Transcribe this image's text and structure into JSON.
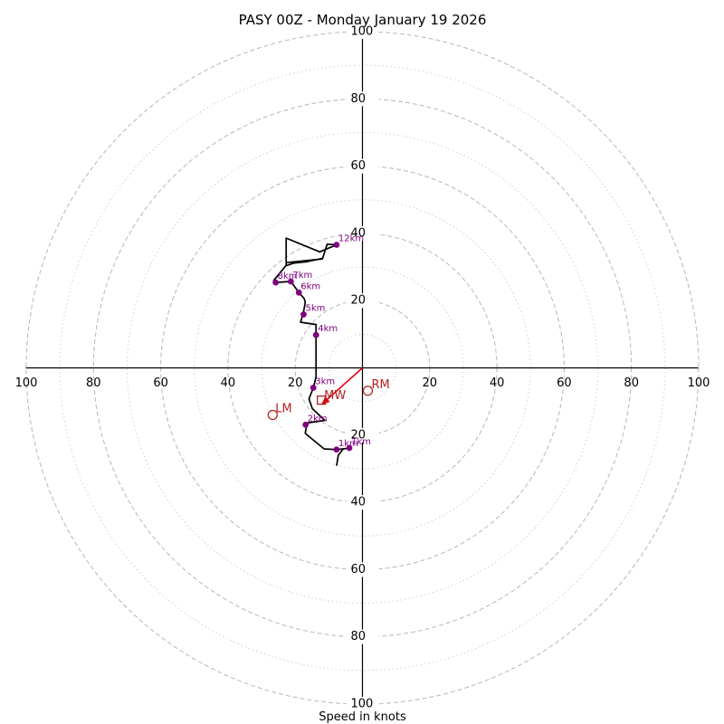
{
  "chart_data": {
    "type": "hodograph",
    "title": "PASY 00Z - Monday January 19 2026",
    "xlabel": "Speed in knots",
    "range": 100,
    "ring_dashed": [
      20,
      40,
      60,
      80,
      100
    ],
    "ring_dotted": [
      10,
      30,
      50,
      70,
      90
    ],
    "tick_labels": {
      "x_left": [
        "100",
        "80",
        "60",
        "40",
        "20"
      ],
      "x_right": [
        "20",
        "40",
        "60",
        "80",
        "100"
      ],
      "y_top": [
        "100",
        "80",
        "60",
        "40",
        "20"
      ],
      "y_bottom": [
        "20",
        "40",
        "60",
        "80",
        "100"
      ]
    },
    "tick_values": {
      "x_left": [
        -100,
        -80,
        -60,
        -40,
        -20
      ],
      "x_right": [
        20,
        40,
        60,
        80,
        100
      ],
      "y_top": [
        100,
        80,
        60,
        40,
        20
      ],
      "y_bottom": [
        -20,
        -40,
        -60,
        -80,
        -100
      ]
    },
    "trace": [
      [
        -7.7,
        -29.1
      ],
      [
        -7.2,
        -26.0
      ],
      [
        -5.7,
        -24.1
      ],
      [
        -4.2,
        -23.9
      ],
      [
        -7.7,
        -24.3
      ],
      [
        -11.4,
        -24.1
      ],
      [
        -17.0,
        -19.5
      ],
      [
        -16.5,
        -16.4
      ],
      [
        -11.2,
        -15.6
      ],
      [
        -14.9,
        -12.1
      ],
      [
        -15.9,
        -9.2
      ],
      [
        -14.6,
        -5.9
      ],
      [
        -13.8,
        -2.7
      ],
      [
        -13.8,
        9.5
      ],
      [
        -13.8,
        12.9
      ],
      [
        -18.4,
        13.6
      ],
      [
        -17.6,
        16.2
      ],
      [
        -17.0,
        19.5
      ],
      [
        -17.3,
        20.6
      ],
      [
        -18.9,
        22.4
      ],
      [
        -21.3,
        25.7
      ],
      [
        -25.8,
        25.4
      ],
      [
        -26.4,
        26.0
      ],
      [
        -22.7,
        30.5
      ],
      [
        -22.7,
        31.3
      ],
      [
        -11.9,
        32.4
      ],
      [
        -10.5,
        36.8
      ],
      [
        -7.7,
        36.6
      ],
      [
        -12.7,
        34.5
      ],
      [
        -22.7,
        38.6
      ],
      [
        -22.7,
        30.4
      ],
      [
        -20.3,
        31.2
      ],
      [
        -16.4,
        31.6
      ],
      [
        -11.9,
        32.6
      ]
    ],
    "height_markers": [
      {
        "label": "1km",
        "u": -3.9,
        "v": -23.8
      },
      {
        "label": "1km",
        "u": -7.7,
        "v": -24.3
      },
      {
        "label": "2km",
        "u": -16.9,
        "v": -16.9
      },
      {
        "label": "3km",
        "u": -14.6,
        "v": -5.9
      },
      {
        "label": "4km",
        "u": -13.8,
        "v": 9.8
      },
      {
        "label": "5km",
        "u": -17.5,
        "v": 15.9
      },
      {
        "label": "6km",
        "u": -18.9,
        "v": 22.4
      },
      {
        "label": "7km",
        "u": -21.3,
        "v": 25.7
      },
      {
        "label": "8km",
        "u": -25.8,
        "v": 25.4
      },
      {
        "label": "12km",
        "u": -7.7,
        "v": 36.6
      }
    ],
    "storm_motion": {
      "rm": {
        "label": "RM",
        "u": 1.6,
        "v": -6.8
      },
      "lm": {
        "label": "LM",
        "u": -26.7,
        "v": -14.0
      },
      "mw": {
        "label": "MW",
        "u": -12.2,
        "v": -9.6
      },
      "shear_vector": {
        "from_u": 0,
        "from_v": 0,
        "to_u": -12.2,
        "to_v": -10.9
      }
    },
    "colors": {
      "trace": "#000000",
      "markers": "#800080",
      "storm_motion": "#b22222",
      "shear": "#e8000b",
      "rings": "#bdbdbd"
    }
  }
}
